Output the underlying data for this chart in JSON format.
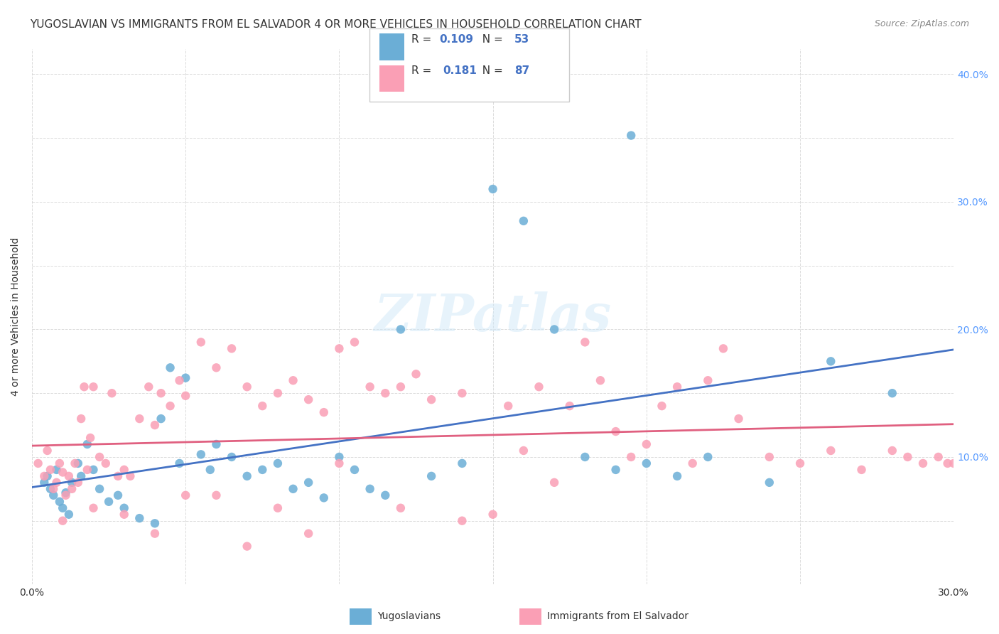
{
  "title": "YUGOSLAVIAN VS IMMIGRANTS FROM EL SALVADOR 4 OR MORE VEHICLES IN HOUSEHOLD CORRELATION CHART",
  "source": "Source: ZipAtlas.com",
  "xlabel": "",
  "ylabel": "4 or more Vehicles in Household",
  "xlim": [
    0.0,
    0.3
  ],
  "ylim": [
    0.0,
    0.42
  ],
  "xticks": [
    0.0,
    0.05,
    0.1,
    0.15,
    0.2,
    0.25,
    0.3
  ],
  "xticklabels": [
    "0.0%",
    "",
    "",
    "",
    "",
    "",
    "30.0%"
  ],
  "yticks_left": [
    0.0,
    0.05,
    0.1,
    0.15,
    0.2,
    0.25,
    0.3,
    0.35,
    0.4
  ],
  "yticks_right": [
    0.1,
    0.2,
    0.3,
    0.4
  ],
  "ytick_right_labels": [
    "10.0%",
    "20.0%",
    "30.0%",
    "40.0%"
  ],
  "legend_label1": "R = 0.109   N = 53",
  "legend_label2": "R =  0.181   N = 87",
  "legend_bottom1": "Yugoslavians",
  "legend_bottom2": "Immigrants from El Salvador",
  "R1": 0.109,
  "N1": 53,
  "R2": 0.181,
  "N2": 87,
  "color_blue": "#6baed6",
  "color_pink": "#fa9fb5",
  "color_blue_text": "#4472c4",
  "color_pink_text": "#e06080",
  "background_color": "#ffffff",
  "grid_color": "#cccccc",
  "watermark": "ZIPatlas",
  "title_fontsize": 11,
  "axis_fontsize": 9,
  "seed": 42,
  "blue_x": [
    0.004,
    0.005,
    0.006,
    0.007,
    0.008,
    0.009,
    0.01,
    0.011,
    0.012,
    0.013,
    0.015,
    0.016,
    0.018,
    0.02,
    0.022,
    0.025,
    0.028,
    0.03,
    0.035,
    0.04,
    0.042,
    0.045,
    0.048,
    0.05,
    0.055,
    0.058,
    0.06,
    0.065,
    0.07,
    0.075,
    0.08,
    0.085,
    0.09,
    0.095,
    0.1,
    0.105,
    0.11,
    0.115,
    0.12,
    0.13,
    0.14,
    0.15,
    0.16,
    0.17,
    0.18,
    0.19,
    0.195,
    0.2,
    0.21,
    0.22,
    0.24,
    0.26,
    0.28
  ],
  "blue_y": [
    0.08,
    0.085,
    0.075,
    0.07,
    0.09,
    0.065,
    0.06,
    0.072,
    0.055,
    0.08,
    0.095,
    0.085,
    0.11,
    0.09,
    0.075,
    0.065,
    0.07,
    0.06,
    0.052,
    0.048,
    0.13,
    0.17,
    0.095,
    0.162,
    0.102,
    0.09,
    0.11,
    0.1,
    0.085,
    0.09,
    0.095,
    0.075,
    0.08,
    0.068,
    0.1,
    0.09,
    0.075,
    0.07,
    0.2,
    0.085,
    0.095,
    0.31,
    0.285,
    0.2,
    0.1,
    0.09,
    0.352,
    0.095,
    0.085,
    0.1,
    0.08,
    0.175,
    0.15
  ],
  "pink_x": [
    0.002,
    0.004,
    0.005,
    0.006,
    0.007,
    0.008,
    0.009,
    0.01,
    0.011,
    0.012,
    0.013,
    0.014,
    0.015,
    0.016,
    0.017,
    0.018,
    0.019,
    0.02,
    0.022,
    0.024,
    0.026,
    0.028,
    0.03,
    0.032,
    0.035,
    0.038,
    0.04,
    0.042,
    0.045,
    0.048,
    0.05,
    0.055,
    0.06,
    0.065,
    0.07,
    0.075,
    0.08,
    0.085,
    0.09,
    0.095,
    0.1,
    0.105,
    0.11,
    0.115,
    0.12,
    0.125,
    0.13,
    0.14,
    0.15,
    0.155,
    0.16,
    0.165,
    0.17,
    0.175,
    0.18,
    0.185,
    0.19,
    0.195,
    0.2,
    0.205,
    0.21,
    0.215,
    0.22,
    0.225,
    0.23,
    0.24,
    0.25,
    0.26,
    0.27,
    0.28,
    0.285,
    0.29,
    0.295,
    0.298,
    0.3,
    0.01,
    0.02,
    0.03,
    0.04,
    0.05,
    0.06,
    0.07,
    0.08,
    0.09,
    0.1,
    0.12,
    0.14
  ],
  "pink_y": [
    0.095,
    0.085,
    0.105,
    0.09,
    0.075,
    0.08,
    0.095,
    0.088,
    0.07,
    0.085,
    0.075,
    0.095,
    0.08,
    0.13,
    0.155,
    0.09,
    0.115,
    0.155,
    0.1,
    0.095,
    0.15,
    0.085,
    0.09,
    0.085,
    0.13,
    0.155,
    0.125,
    0.15,
    0.14,
    0.16,
    0.148,
    0.19,
    0.17,
    0.185,
    0.155,
    0.14,
    0.15,
    0.16,
    0.145,
    0.135,
    0.185,
    0.19,
    0.155,
    0.15,
    0.155,
    0.165,
    0.145,
    0.15,
    0.055,
    0.14,
    0.105,
    0.155,
    0.08,
    0.14,
    0.19,
    0.16,
    0.12,
    0.1,
    0.11,
    0.14,
    0.155,
    0.095,
    0.16,
    0.185,
    0.13,
    0.1,
    0.095,
    0.105,
    0.09,
    0.105,
    0.1,
    0.095,
    0.1,
    0.095,
    0.095,
    0.05,
    0.06,
    0.055,
    0.04,
    0.07,
    0.07,
    0.03,
    0.06,
    0.04,
    0.095,
    0.06,
    0.05
  ]
}
